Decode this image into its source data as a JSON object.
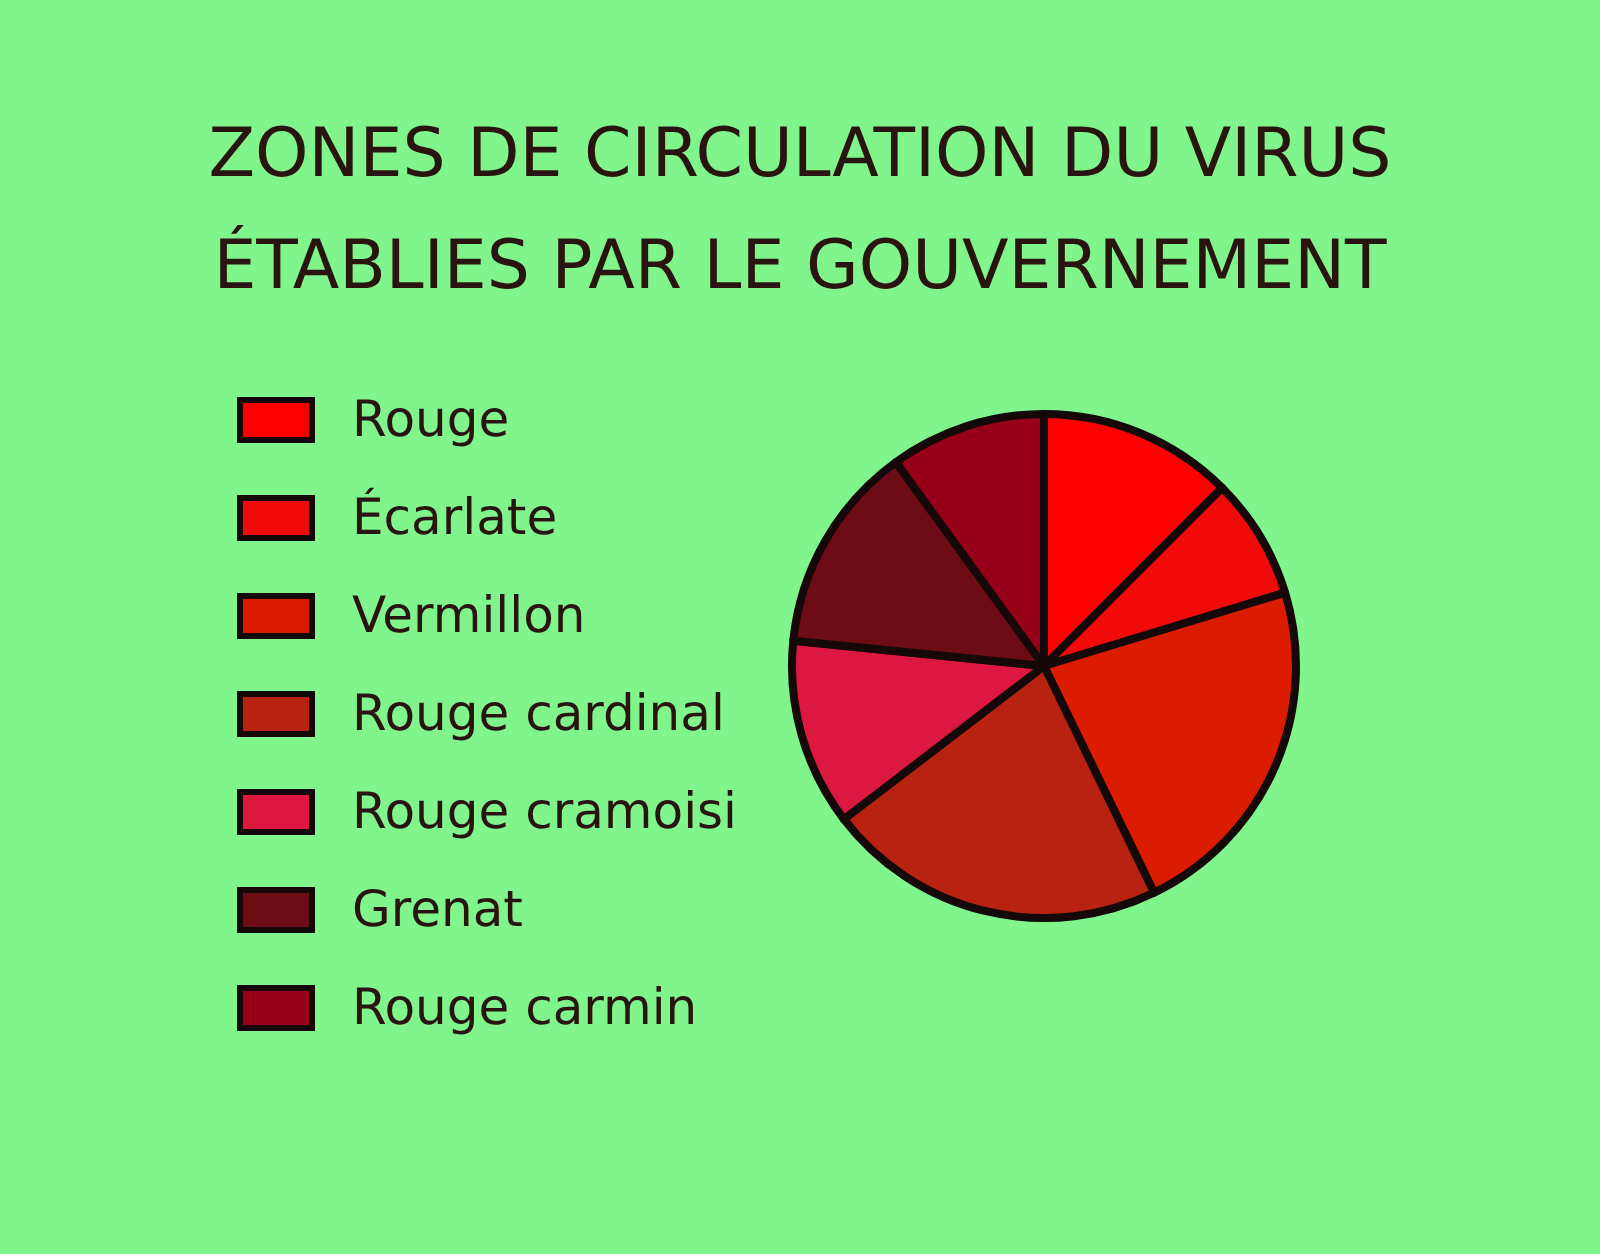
{
  "chart_data": {
    "type": "pie",
    "title": "ZONES DE CIRCULATION DU VIRUS ÉTABLIES PAR LE GOUVERNEMENT",
    "categories": [
      "Rouge",
      "Écarlate",
      "Vermillon",
      "Rouge cardinal",
      "Rouge cramoisi",
      "Grenat",
      "Rouge carmin"
    ],
    "values": [
      12.5,
      7.8,
      22.5,
      21.8,
      12.0,
      13.4,
      10.0
    ],
    "colors": [
      "#ff0000",
      "#f00a0a",
      "#dc1c00",
      "#b82210",
      "#dc1840",
      "#6e0c16",
      "#960018"
    ],
    "legend": "left"
  }
}
